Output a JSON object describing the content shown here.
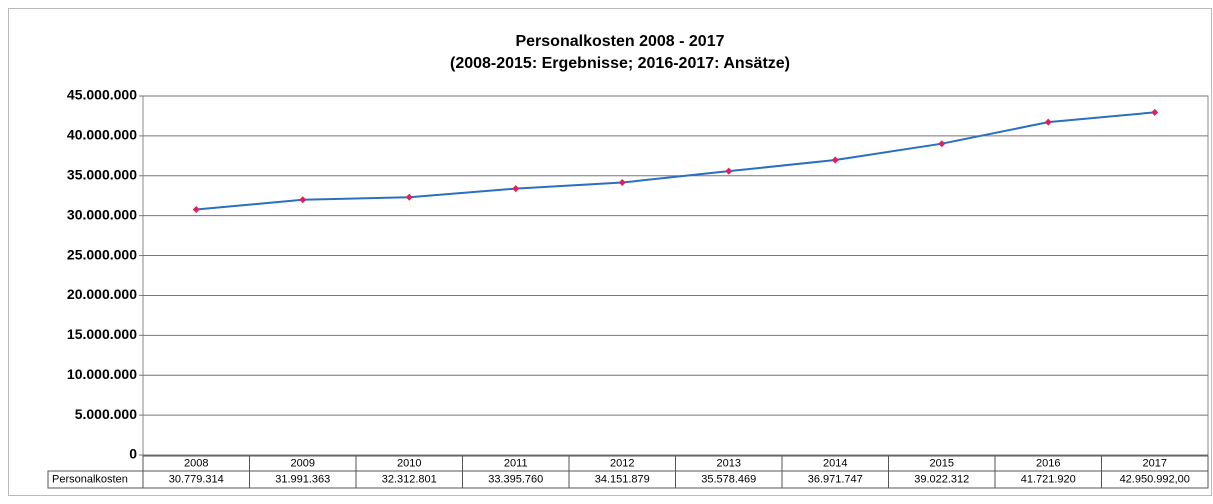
{
  "chart_data": {
    "type": "line",
    "title": "Personalkosten  2008 - 2017",
    "subtitle": "(2008-2015:  Ergebnisse;  2016-2017:  Ansätze)",
    "categories": [
      "2008",
      "2009",
      "2010",
      "2011",
      "2012",
      "2013",
      "2014",
      "2015",
      "2016",
      "2017"
    ],
    "series": [
      {
        "name": "Personalkosten",
        "color": "#2a6fc0",
        "marker_color": "#e0205a",
        "values": [
          30779314,
          31991363,
          32312801,
          33395760,
          34151879,
          35578469,
          36971747,
          39022312,
          41721920,
          42950992
        ],
        "value_labels": [
          "30.779.314",
          "31.991.363",
          "32.312.801",
          "33.395.760",
          "34.151.879",
          "35.578.469",
          "36.971.747",
          "39.022.312",
          "41.721.920",
          "42.950.992,00"
        ]
      }
    ],
    "ylim": [
      0,
      45000000
    ],
    "yticks": [
      0,
      {
        "value": 5000000,
        "label": "5.000.000"
      },
      {
        "value": 10000000,
        "label": "10.000.000"
      },
      {
        "value": 15000000,
        "label": "15.000.000"
      },
      {
        "value": 20000000,
        "label": "20.000.000"
      },
      {
        "value": 25000000,
        "label": "25.000.000"
      },
      {
        "value": 30000000,
        "label": "30.000.000"
      },
      {
        "value": 35000000,
        "label": "35.000.000"
      },
      {
        "value": 40000000,
        "label": "40.000.000"
      },
      {
        "value": 45000000,
        "label": "45.000.000"
      }
    ],
    "grid": true
  }
}
